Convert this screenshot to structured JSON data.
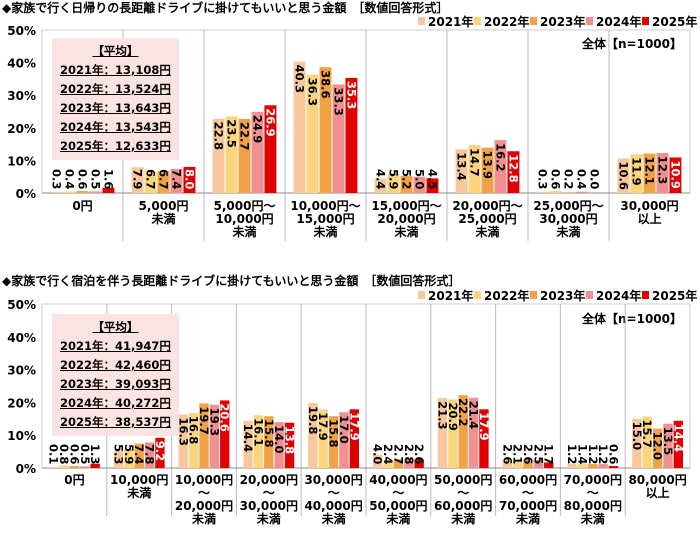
{
  "legend": [
    "2021年",
    "2022年",
    "2023年",
    "2024年",
    "2025年"
  ],
  "colors": [
    "#f9c79c",
    "#fcd47e",
    "#f0a244",
    "#f09090",
    "#e00000"
  ],
  "chart_data": [
    {
      "type": "bar",
      "title": "◆家族で行く日帰りの長距離ドライブに掛けてもいいと思う金額　［数値回答形式］",
      "note": "全体【n=1000】",
      "ylim": [
        0,
        50
      ],
      "yticks": [
        "0%",
        "10%",
        "20%",
        "30%",
        "40%",
        "50%"
      ],
      "average_title": "【平均】",
      "averages": [
        "2021年：13,108円",
        "2022年：13,524円",
        "2023年：13,643円",
        "2024年：13,543円",
        "2025年：12,633円"
      ],
      "categories": [
        "0円",
        "5,000円\n未満",
        "5,000円～\n10,000円\n未満",
        "10,000円～\n15,000円\n未満",
        "15,000円～\n20,000円\n未満",
        "20,000円～\n25,000円\n未満",
        "25,000円～\n30,000円\n未満",
        "30,000円\n以上"
      ],
      "series": [
        {
          "name": "2021年",
          "values": [
            0.3,
            7.9,
            22.8,
            40.3,
            4.4,
            13.4,
            0.3,
            10.6
          ]
        },
        {
          "name": "2022年",
          "values": [
            0.4,
            6.7,
            23.5,
            36.3,
            5.9,
            14.7,
            0.6,
            11.9
          ]
        },
        {
          "name": "2023年",
          "values": [
            0.6,
            6.7,
            22.7,
            38.6,
            5.2,
            13.9,
            0.2,
            12.1
          ]
        },
        {
          "name": "2024年",
          "values": [
            0.5,
            7.4,
            24.9,
            33.3,
            5.0,
            16.2,
            0.4,
            12.3
          ]
        },
        {
          "name": "2025年",
          "values": [
            1.6,
            8.0,
            26.9,
            35.3,
            4.5,
            12.8,
            0.0,
            10.9
          ]
        }
      ]
    },
    {
      "type": "bar",
      "title": "◆家族で行く宿泊を伴う長距離ドライブに掛けてもいいと思う金額　［数値回答形式］",
      "note": "全体【n=1000】",
      "ylim": [
        0,
        50
      ],
      "yticks": [
        "0%",
        "10%",
        "20%",
        "30%",
        "40%",
        "50%"
      ],
      "average_title": "【平均】",
      "averages": [
        "2021年：41,947円",
        "2022年：42,460円",
        "2023年：39,093円",
        "2024年：40,272円",
        "2025年：38,537円"
      ],
      "categories": [
        "0円",
        "10,000円\n未満",
        "10,000円\n～\n20,000円\n未満",
        "20,000円\n～\n30,000円\n未満",
        "30,000円\n～\n40,000円\n未満",
        "40,000円\n～\n50,000円\n未満",
        "50,000円\n～\n60,000円\n未満",
        "60,000円\n～\n70,000円\n未満",
        "70,000円\n～\n80,000円\n未満",
        "80,000円\n以上"
      ],
      "series": [
        {
          "name": "2021年",
          "values": [
            0.1,
            5.3,
            16.3,
            14.4,
            19.8,
            4.0,
            21.3,
            2.6,
            1.2,
            15.0
          ]
        },
        {
          "name": "2022年",
          "values": [
            0.8,
            5.9,
            16.8,
            16.1,
            17.9,
            2.4,
            20.9,
            2.1,
            1.4,
            15.7
          ]
        },
        {
          "name": "2023年",
          "values": [
            0.6,
            7.4,
            19.7,
            15.8,
            15.8,
            2.7,
            22.2,
            2.6,
            1.2,
            12.0
          ]
        },
        {
          "name": "2024年",
          "values": [
            0.5,
            7.8,
            19.3,
            14.0,
            17.0,
            2.8,
            21.4,
            2.5,
            1.2,
            13.5
          ]
        },
        {
          "name": "2025年",
          "values": [
            1.3,
            9.2,
            20.6,
            13.8,
            17.9,
            2.6,
            17.9,
            1.7,
            0.6,
            14.4
          ]
        }
      ]
    }
  ]
}
